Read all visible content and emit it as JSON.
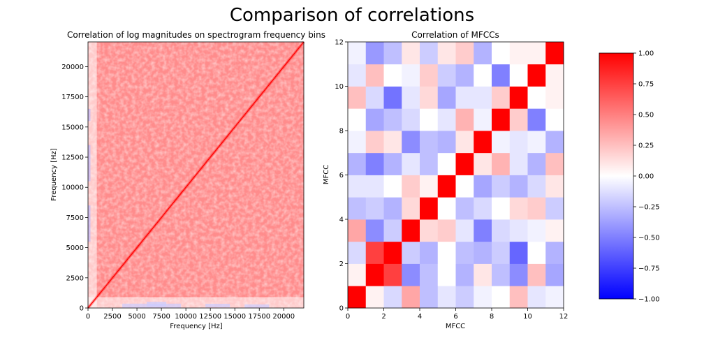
{
  "figure": {
    "title": "Comparison of correlations"
  },
  "chart_data": [
    {
      "type": "heatmap",
      "title": "Correlation of log magnitudes on spectrogram frequency bins",
      "xlabel": "Frequency [Hz]",
      "ylabel": "Frequency [Hz]",
      "xlim": [
        0,
        22050
      ],
      "ylim": [
        0,
        22050
      ],
      "xticks": [
        0,
        2500,
        5000,
        7500,
        10000,
        12500,
        15000,
        17500,
        20000
      ],
      "yticks": [
        0,
        2500,
        5000,
        7500,
        10000,
        12500,
        15000,
        17500,
        20000
      ],
      "description_values": {
        "diagonal": 1.0,
        "typical_off_diagonal": 0.45,
        "low_freq_band_min": -0.2
      },
      "colormap": "bwr"
    },
    {
      "type": "heatmap",
      "title": "Correlation of MFCCs",
      "xlabel": "MFCC",
      "ylabel": "MFCC",
      "xlim": [
        0,
        12
      ],
      "ylim": [
        0,
        12
      ],
      "xticks": [
        0,
        2,
        4,
        6,
        8,
        10,
        12
      ],
      "yticks": [
        0,
        2,
        4,
        6,
        8,
        10,
        12
      ],
      "colormap": "bwr",
      "matrix": [
        [
          1.0,
          0.05,
          -0.15,
          0.35,
          -0.25,
          -0.1,
          -0.2,
          -0.05,
          0.0,
          0.25,
          -0.1,
          -0.05
        ],
        [
          0.05,
          1.0,
          0.75,
          -0.45,
          -0.25,
          0.0,
          -0.3,
          0.1,
          -0.25,
          -0.45,
          0.25,
          -0.35
        ],
        [
          -0.15,
          0.75,
          1.0,
          -0.2,
          -0.3,
          0.0,
          -0.25,
          -0.3,
          -0.2,
          -0.6,
          0.0,
          -0.3
        ],
        [
          0.35,
          -0.45,
          -0.2,
          1.0,
          0.15,
          0.2,
          -0.1,
          -0.5,
          -0.15,
          -0.1,
          -0.05,
          0.05
        ],
        [
          -0.25,
          -0.2,
          -0.3,
          0.15,
          1.0,
          0.0,
          -0.25,
          -0.15,
          0.0,
          0.15,
          0.2,
          -0.2
        ],
        [
          -0.1,
          -0.1,
          0.0,
          0.2,
          0.05,
          1.0,
          0.0,
          -0.35,
          -0.2,
          -0.3,
          -0.15,
          0.1
        ],
        [
          -0.3,
          -0.5,
          -0.3,
          -0.1,
          -0.25,
          0.0,
          1.0,
          0.1,
          0.3,
          -0.1,
          -0.3,
          0.25
        ],
        [
          -0.05,
          0.2,
          0.1,
          -0.45,
          -0.25,
          -0.3,
          0.1,
          1.0,
          -0.05,
          -0.1,
          -0.05,
          -0.3
        ],
        [
          0.0,
          -0.35,
          -0.25,
          -0.15,
          0.0,
          -0.1,
          0.3,
          -0.05,
          1.0,
          0.2,
          -0.5,
          0.0
        ],
        [
          0.25,
          -0.15,
          -0.55,
          -0.1,
          0.15,
          -0.35,
          -0.1,
          -0.1,
          0.2,
          1.0,
          0.0,
          0.05
        ],
        [
          -0.1,
          0.25,
          0.0,
          -0.05,
          0.2,
          -0.2,
          -0.3,
          0.0,
          -0.5,
          0.0,
          1.0,
          0.05
        ],
        [
          -0.05,
          -0.4,
          -0.25,
          0.1,
          -0.2,
          0.1,
          0.2,
          -0.3,
          0.0,
          0.05,
          0.05,
          1.0
        ]
      ]
    }
  ],
  "colorbar": {
    "vmin": -1.0,
    "vmax": 1.0,
    "ticks": [
      "1.00",
      "0.75",
      "0.50",
      "0.25",
      "0.00",
      "−0.25",
      "−0.50",
      "−0.75",
      "−1.00"
    ]
  }
}
